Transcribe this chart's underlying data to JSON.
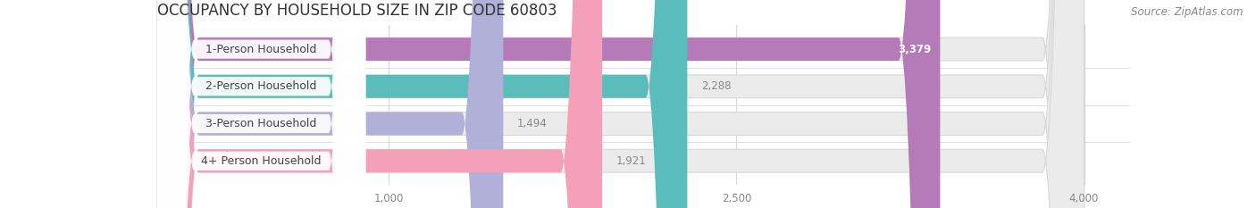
{
  "title": "OCCUPANCY BY HOUSEHOLD SIZE IN ZIP CODE 60803",
  "source": "Source: ZipAtlas.com",
  "categories": [
    "1-Person Household",
    "2-Person Household",
    "3-Person Household",
    "4+ Person Household"
  ],
  "values": [
    3379,
    2288,
    1494,
    1921
  ],
  "bar_colors": [
    "#b57ab8",
    "#5bbcbc",
    "#b0b0d8",
    "#f4a0b8"
  ],
  "bar_bg_color": "#ebebeb",
  "xlim_data": [
    0,
    4200
  ],
  "xlim_display": [
    0,
    4000
  ],
  "xticks": [
    1000,
    2500,
    4000
  ],
  "label_color_inside": "#ffffff",
  "value_color": "#888888",
  "title_fontsize": 12,
  "source_fontsize": 8.5,
  "bar_label_fontsize": 8.5,
  "category_fontsize": 9,
  "tick_fontsize": 8.5,
  "bar_height": 0.62,
  "background_color": "#ffffff",
  "pill_bg": "#ffffff",
  "pill_text_color": "#444444",
  "separator_color": "#e0e0e0"
}
